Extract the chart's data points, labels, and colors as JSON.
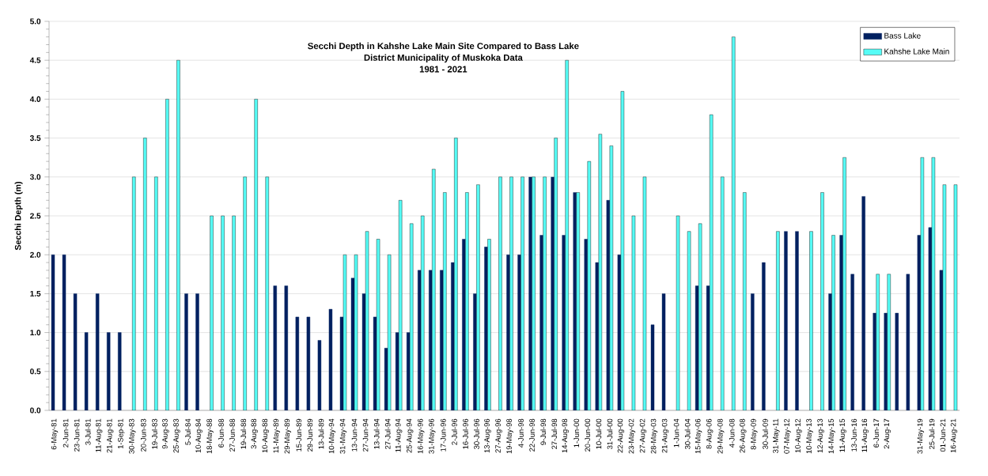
{
  "chart_data": {
    "type": "bar",
    "title": "Secchi Depth in Kahshe Lake Main Site Compared to Bass Lake",
    "subtitle": "District Municipality of Muskoka Data",
    "annotations": [
      "1981 - 2021"
    ],
    "ylabel": "Secchi Depth (m)",
    "categories": [
      "6-May-81",
      "2-Jun-81",
      "23-Jun-81",
      "3-Jul-81",
      "11-Aug-81",
      "21-Aug-81",
      "1-Sep-81",
      "30-May-83",
      "20-Jun-83",
      "19-Jul-83",
      "9-Aug-83",
      "25-Aug-83",
      "5-Jul-84",
      "10-Aug-84",
      "18-May-88",
      "6-Jun-88",
      "27-Jun-88",
      "19-Jul-88",
      "3-Aug-88",
      "10-Aug-88",
      "11-May-89",
      "29-May-89",
      "15-Jun-89",
      "29-Jun-89",
      "13-Jul-89",
      "10-May-94",
      "31-May-94",
      "13-Jun-94",
      "27-Jun-94",
      "13-Jul-94",
      "27-Jul-94",
      "11-Aug-94",
      "25-Aug-94",
      "16-May-96",
      "31-May-96",
      "17-Jun-96",
      "2-Jul-96",
      "16-Jul-96",
      "30-Jul-96",
      "13-Aug-96",
      "27-Aug-96",
      "19-May-98",
      "4-Jun-98",
      "22-Jun-98",
      "9-Jul-98",
      "27-Jul-98",
      "14-Aug-98",
      "1-Jun-00",
      "20-Jun-00",
      "10-Jul-00",
      "31-Jul-00",
      "22-Aug-00",
      "23-May-02",
      "27-Aug-02",
      "28-May-03",
      "21-Aug-03",
      "1-Jun-04",
      "30-Jul-04",
      "15-May-06",
      "8-Aug-06",
      "29-May-08",
      "4-Jun-08",
      "26-Aug-08",
      "8-May-09",
      "30-Jul-09",
      "31-May-11",
      "07-May-12",
      "10-Aug-12",
      "10-May-13",
      "12-Aug-13",
      "14-May-15",
      "11-Aug-15",
      "13-Jun-16",
      "11-Aug-16",
      "6-Jun-17",
      "2-Aug-17",
      null,
      null,
      "31-May-19",
      "25-Jul-19",
      "01-Jun-21",
      "16-Aug-21"
    ],
    "series": [
      {
        "name": "Bass Lake",
        "color": "#002060",
        "values": [
          2.0,
          2.0,
          1.5,
          1.0,
          1.5,
          1.0,
          1.0,
          null,
          null,
          null,
          null,
          null,
          1.5,
          1.5,
          null,
          null,
          null,
          null,
          null,
          null,
          1.6,
          1.6,
          1.2,
          1.2,
          0.9,
          1.3,
          1.2,
          1.7,
          1.5,
          1.2,
          0.8,
          1.0,
          1.0,
          1.8,
          1.8,
          1.8,
          1.9,
          2.2,
          1.5,
          2.1,
          null,
          2.0,
          2.0,
          3.0,
          2.25,
          3.0,
          2.25,
          2.8,
          2.2,
          1.9,
          2.7,
          2.0,
          null,
          null,
          1.1,
          1.5,
          null,
          null,
          1.6,
          1.6,
          null,
          null,
          null,
          1.5,
          1.9,
          null,
          2.3,
          2.3,
          null,
          null,
          1.5,
          2.25,
          1.75,
          2.75,
          1.25,
          1.25,
          1.25,
          1.75,
          2.25,
          2.35,
          1.8,
          null
        ]
      },
      {
        "name": "Kahshe Lake Main",
        "color": "#55fcf6",
        "values": [
          null,
          null,
          null,
          null,
          null,
          null,
          null,
          3.0,
          3.5,
          3.0,
          4.0,
          4.5,
          null,
          null,
          2.5,
          2.5,
          2.5,
          3.0,
          4.0,
          3.0,
          null,
          null,
          null,
          null,
          null,
          null,
          2.0,
          2.0,
          2.3,
          2.2,
          2.0,
          2.7,
          2.4,
          2.5,
          3.1,
          2.8,
          3.5,
          2.8,
          2.9,
          2.2,
          3.0,
          3.0,
          3.0,
          3.0,
          3.0,
          3.5,
          4.5,
          2.8,
          3.2,
          3.55,
          3.4,
          4.1,
          2.5,
          3.0,
          null,
          null,
          2.5,
          2.3,
          2.4,
          3.8,
          3.0,
          4.8,
          2.8,
          null,
          null,
          2.3,
          null,
          null,
          2.3,
          2.8,
          2.25,
          3.25,
          null,
          null,
          1.75,
          1.75,
          null,
          null,
          3.25,
          3.25,
          2.9,
          2.9
        ]
      }
    ],
    "ylim": [
      0,
      5
    ],
    "yticks": [
      {
        "value": 0,
        "label": "0.0"
      },
      {
        "value": 0.5,
        "label": "0.5"
      },
      {
        "value": 1,
        "label": "1.0"
      },
      {
        "value": 1.5,
        "label": "1.5"
      },
      {
        "value": 2,
        "label": "2.0"
      },
      {
        "value": 2.5,
        "label": "2.5"
      },
      {
        "value": 3,
        "label": "3.0"
      },
      {
        "value": 3.5,
        "label": "3.5"
      },
      {
        "value": 4,
        "label": "4.0"
      },
      {
        "value": 4.5,
        "label": "4.5"
      },
      {
        "value": 5,
        "label": "5.0"
      }
    ],
    "grid": "y",
    "legend": "top right"
  }
}
